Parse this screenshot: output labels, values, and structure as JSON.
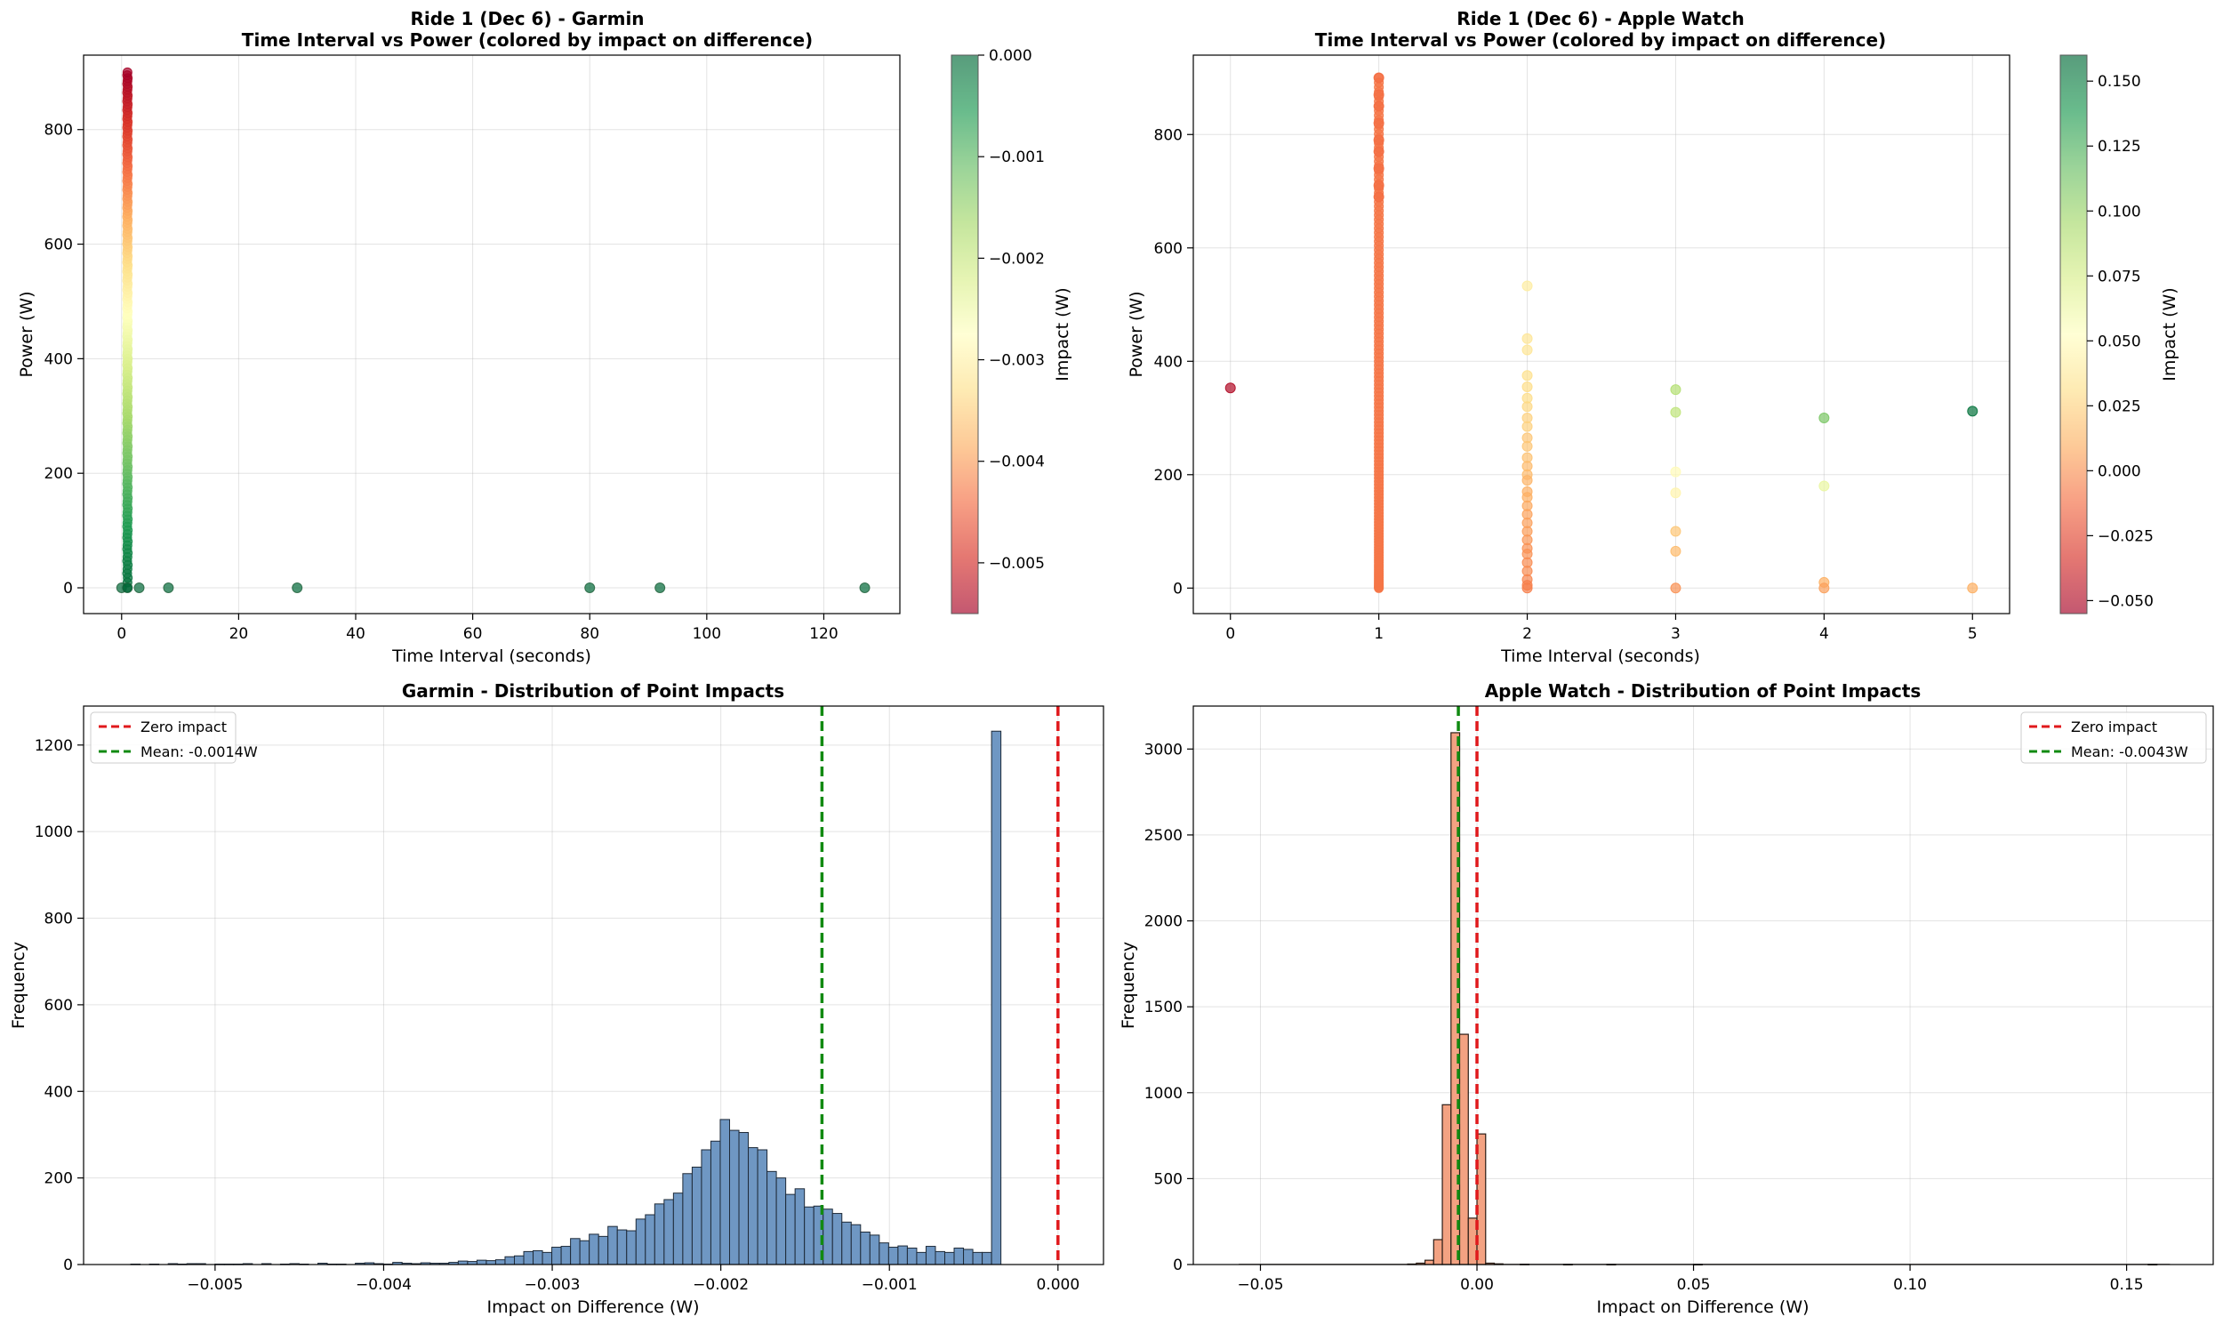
{
  "chart_data": [
    {
      "id": "garmin_scatter",
      "type": "scatter",
      "title_line1": "Ride 1 (Dec 6) - Garmin",
      "title_line2": "Time Interval vs Power (colored by impact on difference)",
      "xlabel": "Time Interval (seconds)",
      "ylabel": "Power (W)",
      "xlim": [
        -6.5,
        133
      ],
      "ylim": [
        -45,
        930
      ],
      "xticks": [
        0,
        20,
        40,
        60,
        80,
        100,
        120
      ],
      "yticks": [
        0,
        200,
        400,
        600,
        800
      ],
      "colorbar": {
        "label": "Impact (W)",
        "range": [
          -0.0055,
          0.0
        ],
        "ticks": [
          "0.000",
          "−0.001",
          "−0.002",
          "−0.003",
          "−0.004",
          "−0.005"
        ],
        "tick_values": [
          0.0,
          -0.001,
          -0.002,
          -0.003,
          -0.004,
          -0.005
        ],
        "reversed": true
      },
      "column": {
        "x": 1,
        "power_min": 0,
        "power_max": 900,
        "impact_at_min": -5e-05,
        "impact_at_max": -0.0055
      },
      "points": [
        {
          "x": 0,
          "y": 0,
          "impact": 0.0
        },
        {
          "x": 1,
          "y": 0,
          "impact": 0.0
        },
        {
          "x": 3,
          "y": 0,
          "impact": 0.0
        },
        {
          "x": 8,
          "y": 0,
          "impact": 0.0
        },
        {
          "x": 30,
          "y": 0,
          "impact": 0.0
        },
        {
          "x": 80,
          "y": 0,
          "impact": 0.0
        },
        {
          "x": 92,
          "y": 0,
          "impact": 0.0
        },
        {
          "x": 127,
          "y": 0,
          "impact": 0.0
        }
      ]
    },
    {
      "id": "apple_scatter",
      "type": "scatter",
      "title_line1": "Ride 1 (Dec 6) - Apple Watch",
      "title_line2": "Time Interval vs Power (colored by impact on difference)",
      "xlabel": "Time Interval (seconds)",
      "ylabel": "Power (W)",
      "xlim": [
        -0.25,
        5.25
      ],
      "ylim": [
        -45,
        940
      ],
      "xticks": [
        0,
        1,
        2,
        3,
        4,
        5
      ],
      "yticks": [
        0,
        200,
        400,
        600,
        800
      ],
      "colorbar": {
        "label": "Impact (W)",
        "range": [
          -0.055,
          0.16
        ],
        "ticks": [
          "0.150",
          "0.125",
          "0.100",
          "0.075",
          "0.050",
          "0.025",
          "0.000",
          "−0.025",
          "−0.050"
        ],
        "tick_values": [
          0.15,
          0.125,
          0.1,
          0.075,
          0.05,
          0.025,
          0.0,
          -0.025,
          -0.05
        ],
        "reversed": false
      },
      "column": {
        "x": 1,
        "power_min": 0,
        "power_max": 900,
        "impact": -0.009
      },
      "points": [
        {
          "x": 0,
          "y": 353,
          "impact": -0.05
        },
        {
          "x": 1,
          "y": 900,
          "impact": -0.012
        },
        {
          "x": 1,
          "y": 870,
          "impact": -0.012
        },
        {
          "x": 1,
          "y": 850,
          "impact": -0.012
        },
        {
          "x": 1,
          "y": 820,
          "impact": -0.012
        },
        {
          "x": 1,
          "y": 790,
          "impact": -0.012
        },
        {
          "x": 1,
          "y": 770,
          "impact": -0.012
        },
        {
          "x": 1,
          "y": 740,
          "impact": -0.012
        },
        {
          "x": 1,
          "y": 710,
          "impact": -0.012
        },
        {
          "x": 1,
          "y": 690,
          "impact": -0.012
        },
        {
          "x": 2,
          "y": 533,
          "impact": 0.04
        },
        {
          "x": 2,
          "y": 440,
          "impact": 0.035
        },
        {
          "x": 2,
          "y": 420,
          "impact": 0.035
        },
        {
          "x": 2,
          "y": 375,
          "impact": 0.032
        },
        {
          "x": 2,
          "y": 355,
          "impact": 0.03
        },
        {
          "x": 2,
          "y": 335,
          "impact": 0.03
        },
        {
          "x": 2,
          "y": 320,
          "impact": 0.028
        },
        {
          "x": 2,
          "y": 300,
          "impact": 0.025
        },
        {
          "x": 2,
          "y": 285,
          "impact": 0.025
        },
        {
          "x": 2,
          "y": 265,
          "impact": 0.02
        },
        {
          "x": 2,
          "y": 250,
          "impact": 0.02
        },
        {
          "x": 2,
          "y": 230,
          "impact": 0.018
        },
        {
          "x": 2,
          "y": 215,
          "impact": 0.015
        },
        {
          "x": 2,
          "y": 200,
          "impact": 0.015
        },
        {
          "x": 2,
          "y": 190,
          "impact": 0.012
        },
        {
          "x": 2,
          "y": 170,
          "impact": 0.01
        },
        {
          "x": 2,
          "y": 160,
          "impact": 0.01
        },
        {
          "x": 2,
          "y": 145,
          "impact": 0.008
        },
        {
          "x": 2,
          "y": 130,
          "impact": 0.006
        },
        {
          "x": 2,
          "y": 115,
          "impact": 0.005
        },
        {
          "x": 2,
          "y": 100,
          "impact": 0.004
        },
        {
          "x": 2,
          "y": 85,
          "impact": 0.002
        },
        {
          "x": 2,
          "y": 70,
          "impact": 0.0
        },
        {
          "x": 2,
          "y": 60,
          "impact": 0.0
        },
        {
          "x": 2,
          "y": 45,
          "impact": -0.002
        },
        {
          "x": 2,
          "y": 30,
          "impact": -0.002
        },
        {
          "x": 2,
          "y": 15,
          "impact": -0.004
        },
        {
          "x": 2,
          "y": 5,
          "impact": -0.006
        },
        {
          "x": 2,
          "y": 0,
          "impact": -0.006
        },
        {
          "x": 3,
          "y": 350,
          "impact": 0.09
        },
        {
          "x": 3,
          "y": 310,
          "impact": 0.085
        },
        {
          "x": 3,
          "y": 205,
          "impact": 0.05
        },
        {
          "x": 3,
          "y": 168,
          "impact": 0.045
        },
        {
          "x": 3,
          "y": 100,
          "impact": 0.02
        },
        {
          "x": 3,
          "y": 65,
          "impact": 0.015
        },
        {
          "x": 3,
          "y": 0,
          "impact": 0.0
        },
        {
          "x": 4,
          "y": 300,
          "impact": 0.11
        },
        {
          "x": 4,
          "y": 180,
          "impact": 0.065
        },
        {
          "x": 4,
          "y": 10,
          "impact": 0.01
        },
        {
          "x": 4,
          "y": 0,
          "impact": 0.005
        },
        {
          "x": 5,
          "y": 312,
          "impact": 0.155
        },
        {
          "x": 5,
          "y": 0,
          "impact": 0.01
        }
      ]
    },
    {
      "id": "garmin_hist",
      "type": "bar",
      "title": "Garmin - Distribution of Point Impacts",
      "xlabel": "Impact on Difference (W)",
      "ylabel": "Frequency",
      "xlim": [
        -0.00578,
        0.00027
      ],
      "ylim": [
        0,
        1290
      ],
      "xticks": [
        -0.005,
        -0.004,
        -0.003,
        -0.002,
        -0.001,
        0.0
      ],
      "xtick_labels": [
        "−0.005",
        "−0.004",
        "−0.003",
        "−0.002",
        "−0.001",
        "0.000"
      ],
      "yticks": [
        0,
        200,
        400,
        600,
        800,
        1000,
        1200
      ],
      "bin_start": -0.0055,
      "bin_width": 5.55e-05,
      "bar_color": "#6f97c3",
      "values": [
        1,
        0,
        1,
        0,
        2,
        1,
        2,
        2,
        0,
        1,
        1,
        1,
        2,
        0,
        2,
        0,
        1,
        2,
        1,
        0,
        3,
        1,
        1,
        0,
        3,
        4,
        2,
        1,
        5,
        3,
        2,
        4,
        3,
        3,
        5,
        8,
        7,
        10,
        9,
        11,
        18,
        20,
        30,
        32,
        28,
        40,
        42,
        60,
        55,
        70,
        65,
        88,
        80,
        78,
        105,
        115,
        140,
        150,
        165,
        210,
        225,
        265,
        285,
        335,
        310,
        305,
        270,
        265,
        215,
        200,
        162,
        175,
        133,
        135,
        128,
        118,
        98,
        92,
        75,
        68,
        50,
        40,
        43,
        38,
        28,
        42,
        30,
        28,
        38,
        35,
        28,
        28,
        1232
      ],
      "lines": [
        {
          "label": "Zero impact",
          "x": 0.0,
          "color": "#e0191c"
        },
        {
          "label": "Mean: -0.0014W",
          "x": -0.0014,
          "color": "#118a11"
        }
      ]
    },
    {
      "id": "apple_hist",
      "type": "bar",
      "title": "Apple Watch - Distribution of Point Impacts",
      "xlabel": "Impact on Difference (W)",
      "ylabel": "Frequency",
      "xlim": [
        -0.0655,
        0.17
      ],
      "ylim": [
        0,
        3250
      ],
      "xticks": [
        -0.05,
        0.0,
        0.05,
        0.1,
        0.15
      ],
      "xtick_labels": [
        "−0.05",
        "0.00",
        "0.05",
        "0.10",
        "0.15"
      ],
      "yticks": [
        0,
        500,
        1000,
        1500,
        2000,
        2500,
        3000
      ],
      "bar_color": "#f3a282",
      "bars": [
        {
          "x": -0.016,
          "w": 0.002,
          "v": 3
        },
        {
          "x": -0.014,
          "w": 0.002,
          "v": 8
        },
        {
          "x": -0.012,
          "w": 0.002,
          "v": 25
        },
        {
          "x": -0.01,
          "w": 0.002,
          "v": 145
        },
        {
          "x": -0.008,
          "w": 0.002,
          "v": 930
        },
        {
          "x": -0.006,
          "w": 0.002,
          "v": 3095
        },
        {
          "x": -0.004,
          "w": 0.002,
          "v": 1340
        },
        {
          "x": -0.002,
          "w": 0.002,
          "v": 270
        },
        {
          "x": 0.0,
          "w": 0.002,
          "v": 760
        },
        {
          "x": 0.002,
          "w": 0.002,
          "v": 8
        },
        {
          "x": 0.004,
          "w": 0.002,
          "v": 4
        },
        {
          "x": 0.01,
          "w": 0.002,
          "v": 2
        },
        {
          "x": 0.02,
          "w": 0.002,
          "v": 1
        },
        {
          "x": 0.03,
          "w": 0.002,
          "v": 1
        },
        {
          "x": 0.05,
          "w": 0.002,
          "v": 1
        },
        {
          "x": 0.155,
          "w": 0.002,
          "v": 1
        }
      ],
      "lines": [
        {
          "label": "Zero impact",
          "x": 0.0,
          "color": "#e0191c"
        },
        {
          "label": "Mean: -0.0043W",
          "x": -0.0043,
          "color": "#118a11"
        }
      ]
    }
  ]
}
